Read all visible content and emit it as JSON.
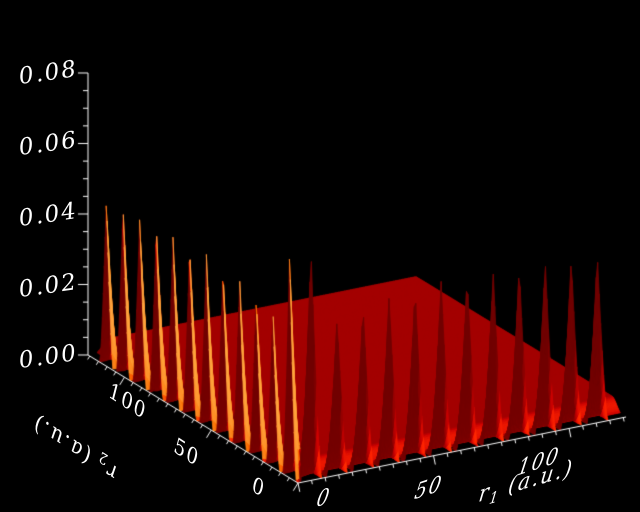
{
  "figure": {
    "background": "#000000",
    "axis_color": "#ffffff",
    "text_color": "#ffffff"
  },
  "chart_data": {
    "type": "surface3d",
    "title": "",
    "x_axis": {
      "title": "r",
      "title_sub": "1",
      "title_unit": " (a.u.)",
      "tick_labels": [
        "0",
        "50",
        "100"
      ],
      "tick_values": [
        0,
        50,
        100
      ],
      "minor_tick_step": 5,
      "range": [
        0,
        121
      ]
    },
    "y_axis": {
      "title": "r",
      "title_sub": "2",
      "title_unit": " (a.u.)",
      "tick_labels": [
        "0",
        "50",
        "100"
      ],
      "tick_values": [
        0,
        50,
        100
      ],
      "minor_tick_step": 5,
      "range": [
        0,
        121
      ]
    },
    "z_axis": {
      "title": "",
      "tick_labels": [
        "0.00",
        "0.02",
        "0.04",
        "0.06",
        "0.08"
      ],
      "tick_values": [
        0,
        0.02,
        0.04,
        0.06,
        0.08
      ],
      "minor_tick_step": 0.005,
      "range": [
        0,
        0.08
      ]
    },
    "surface": {
      "description": "Probability density with rows of sharp conical peaks along both coordinate axes (r1=0 edge and r2=0 edge), tallest pair of spikes adjacent to the origin, and a flat low plateau over the interior of the (r1,r2) plane.",
      "peak_positions": [
        4.8,
        14.4,
        24.0,
        33.6,
        43.2,
        52.8,
        62.4,
        72.0,
        81.6,
        91.2,
        100.8,
        110.4
      ],
      "peak_heights": [
        0.0655,
        0.0445,
        0.0465,
        0.048,
        0.0485,
        0.049,
        0.049,
        0.049,
        0.049,
        0.049,
        0.0485,
        0.048
      ],
      "peak_halfwidth": 3.8,
      "falloff_exponent": 1.35,
      "plateau_height": 0.0035
    },
    "palette": {
      "shadow": "#730000",
      "plateau": "#A50000",
      "mid": "#FF4100",
      "lit": "#FF9E37",
      "background": "#000000"
    },
    "legend": null,
    "grid": false
  }
}
